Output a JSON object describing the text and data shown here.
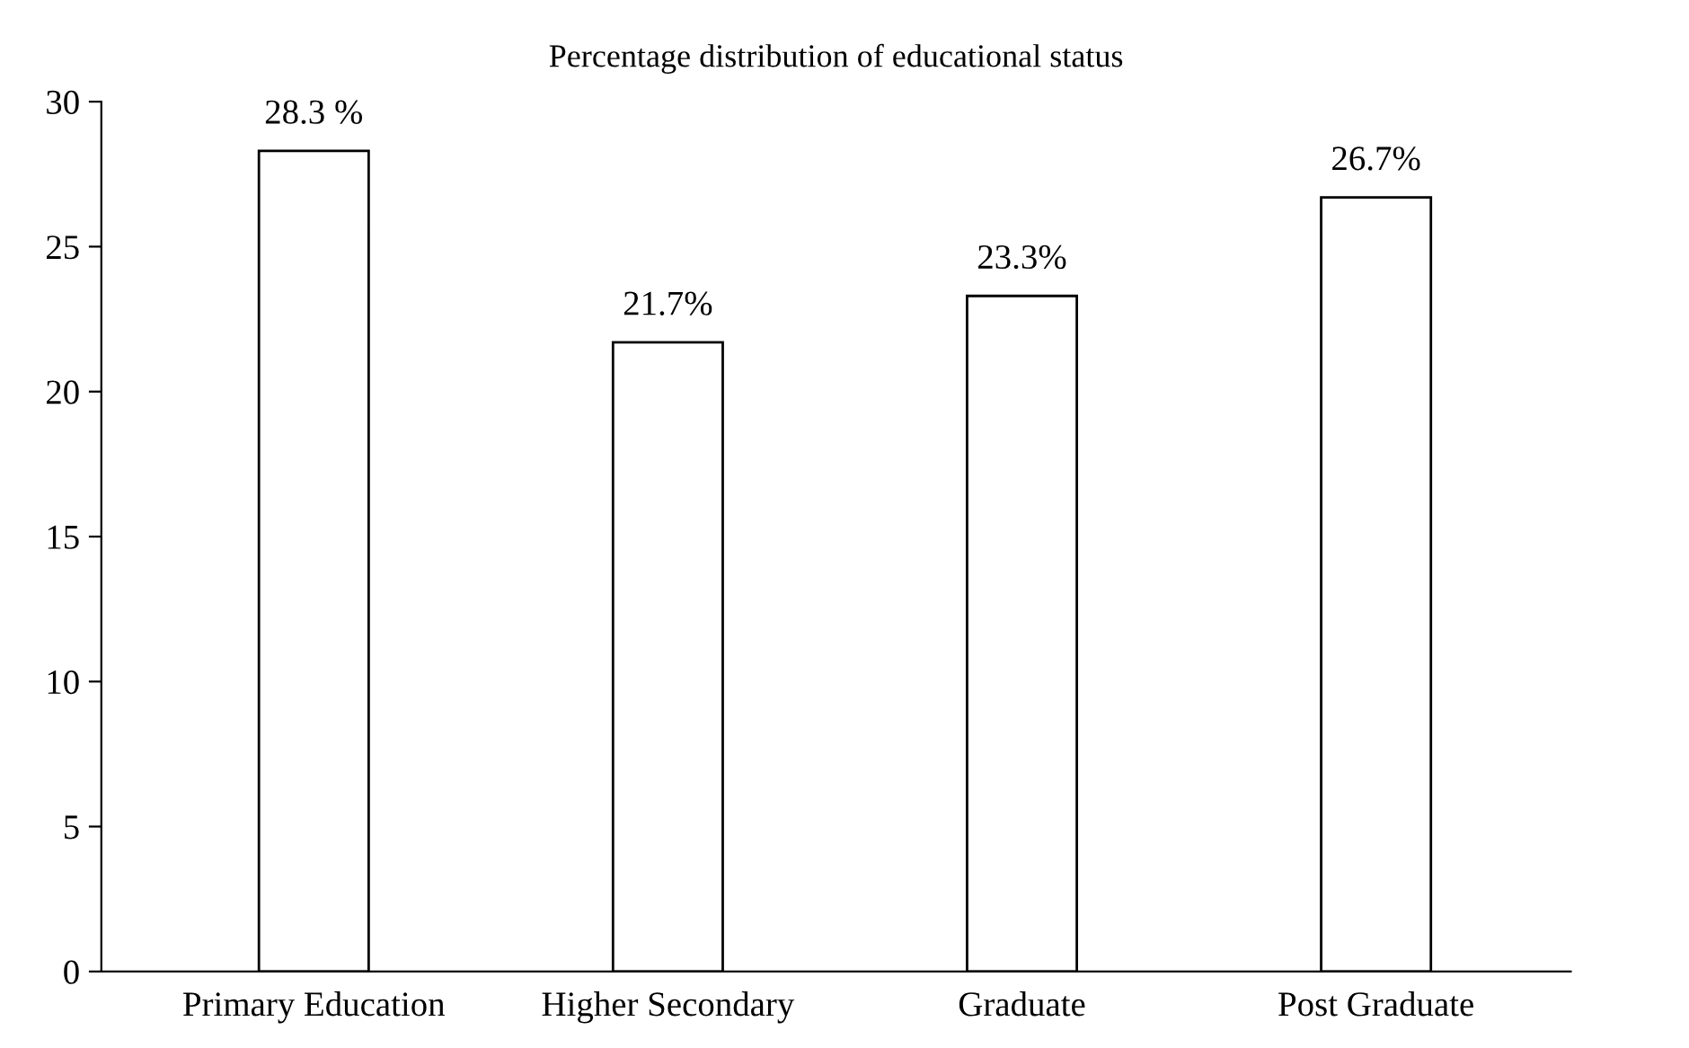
{
  "chart_data": {
    "type": "bar",
    "title": "Percentage distribution of educational status",
    "categories": [
      "Primary Education",
      "Higher Secondary",
      "Graduate",
      "Post Graduate"
    ],
    "values": [
      28.3,
      21.7,
      23.3,
      26.7
    ],
    "value_labels": [
      "28.3 %",
      "21.7%",
      "23.3%",
      "26.7%"
    ],
    "color": "#ffffff",
    "ylim": [
      0,
      30
    ],
    "yticks": [
      0,
      5,
      10,
      15,
      20,
      25,
      30
    ],
    "grid": false,
    "legend": false
  }
}
